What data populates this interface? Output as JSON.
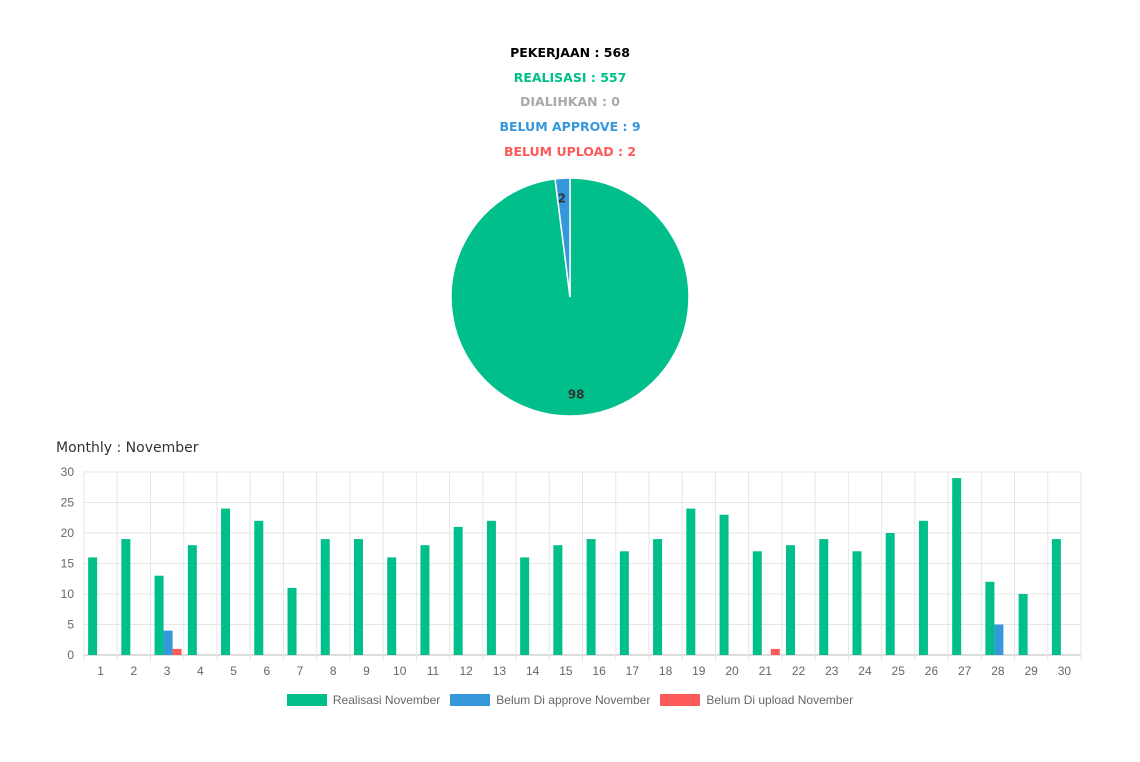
{
  "summary": {
    "pekerjaan": "PEKERJAAN : 568",
    "realisasi": "REALISASI : 557",
    "dialihkan": "DIALIHKAN : 0",
    "belum_approve": "BELUM APPROVE : 9",
    "belum_upload": "BELUM UPLOAD : 2"
  },
  "colors": {
    "realisasi": "#00bf8a",
    "approve": "#3498db",
    "upload": "#ff5a5a",
    "dialihkan": "#a9a9a9",
    "title": "#000000"
  },
  "monthly_title": "Monthly : November",
  "chart_data": [
    {
      "type": "pie",
      "values": [
        98,
        2
      ],
      "labels": [
        "98",
        "2"
      ],
      "colors": [
        "#00bf8a",
        "#3498db"
      ]
    },
    {
      "type": "bar",
      "categories": [
        "1",
        "2",
        "3",
        "4",
        "5",
        "6",
        "7",
        "8",
        "9",
        "10",
        "11",
        "12",
        "13",
        "14",
        "15",
        "16",
        "17",
        "18",
        "19",
        "20",
        "21",
        "22",
        "23",
        "24",
        "25",
        "26",
        "27",
        "28",
        "29",
        "30"
      ],
      "ylim": [
        0,
        30
      ],
      "yticks": [
        0,
        5,
        10,
        15,
        20,
        25,
        30
      ],
      "grid": true,
      "legend_position": "bottom",
      "series": [
        {
          "name": "Realisasi November",
          "color": "#00bf8a",
          "values": [
            16,
            19,
            13,
            18,
            24,
            22,
            11,
            19,
            19,
            16,
            18,
            21,
            22,
            16,
            18,
            19,
            17,
            19,
            24,
            23,
            17,
            18,
            19,
            17,
            20,
            22,
            29,
            12,
            10,
            19
          ]
        },
        {
          "name": "Belum Di approve November",
          "color": "#3498db",
          "values": [
            0,
            0,
            4,
            0,
            0,
            0,
            0,
            0,
            0,
            0,
            0,
            0,
            0,
            0,
            0,
            0,
            0,
            0,
            0,
            0,
            0,
            0,
            0,
            0,
            0,
            0,
            0,
            5,
            0,
            0
          ]
        },
        {
          "name": "Belum Di upload November",
          "color": "#ff5a5a",
          "values": [
            0,
            0,
            1,
            0,
            0,
            0,
            0,
            0,
            0,
            0,
            0,
            0,
            0,
            0,
            0,
            0,
            0,
            0,
            0,
            0,
            1,
            0,
            0,
            0,
            0,
            0,
            0,
            0,
            0,
            0
          ]
        }
      ]
    }
  ]
}
